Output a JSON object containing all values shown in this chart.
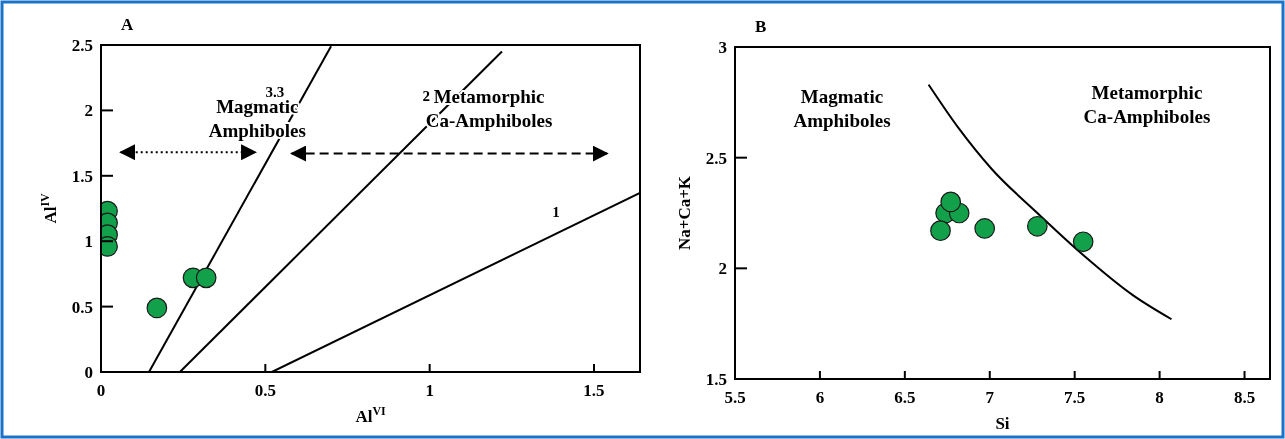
{
  "chart_data": [
    {
      "type": "scatter",
      "title": "A",
      "xlabel": "Al$^{VI}$",
      "ylabel": "Al$^{IV}$",
      "xlim": [
        0,
        1.64
      ],
      "ylim": [
        0,
        2.5
      ],
      "xticks": [
        0,
        0.5,
        1,
        1.5
      ],
      "yticks": [
        0,
        0.5,
        1,
        1.5,
        2,
        2.5
      ],
      "grid": false,
      "marker": "circle",
      "annotations": [
        "Magmatic Amphiboles",
        "Metamorphic Ca-Amphiboles"
      ],
      "series": [
        {
          "color": "#12a04a",
          "x": [
            0.02,
            0.02,
            0.02,
            0.02,
            0.17,
            0.28,
            0.32
          ],
          "values": [
            1.23,
            1.14,
            1.05,
            0.96,
            0.49,
            0.72,
            0.72
          ]
        },
        {
          "type": "line",
          "marker": "none",
          "name": "3.3",
          "color": "#000000",
          "x": [
            0.146,
            0.7
          ],
          "values": [
            0,
            2.49
          ]
        },
        {
          "type": "line",
          "marker": "none",
          "name": "2",
          "color": "#000000",
          "x": [
            0.24,
            1.22
          ],
          "values": [
            0,
            2.45
          ]
        },
        {
          "type": "line",
          "marker": "none",
          "name": "1",
          "color": "#000000",
          "x": [
            0.52,
            1.64
          ],
          "values": [
            0,
            1.37
          ]
        }
      ]
    },
    {
      "type": "scatter",
      "title": "B",
      "xlabel": "Si",
      "ylabel": "Na+Ca+K",
      "xlim": [
        5.5,
        8.65
      ],
      "ylim": [
        1.5,
        3
      ],
      "xticks": [
        5.5,
        6,
        6.5,
        7,
        7.5,
        8,
        8.5
      ],
      "yticks": [
        1.5,
        2,
        2.5,
        3
      ],
      "grid": false,
      "marker": "circle",
      "annotations": [
        "Magmatic Amphiboles",
        "Metamorphic Ca-Amphiboles"
      ],
      "series": [
        {
          "type": "line",
          "marker": "none",
          "color": "#000000",
          "x": [
            6.64,
            6.82,
            7.01,
            7.28,
            7.55,
            7.84,
            8.07
          ],
          "values": [
            2.83,
            2.63,
            2.45,
            2.25,
            2.06,
            1.88,
            1.77
          ]
        },
        {
          "color": "#12a04a",
          "x": [
            6.74,
            6.82,
            6.77,
            6.71,
            6.97,
            7.28,
            7.55
          ],
          "values": [
            2.25,
            2.25,
            2.3,
            2.17,
            2.18,
            2.19,
            2.12
          ]
        }
      ]
    }
  ]
}
